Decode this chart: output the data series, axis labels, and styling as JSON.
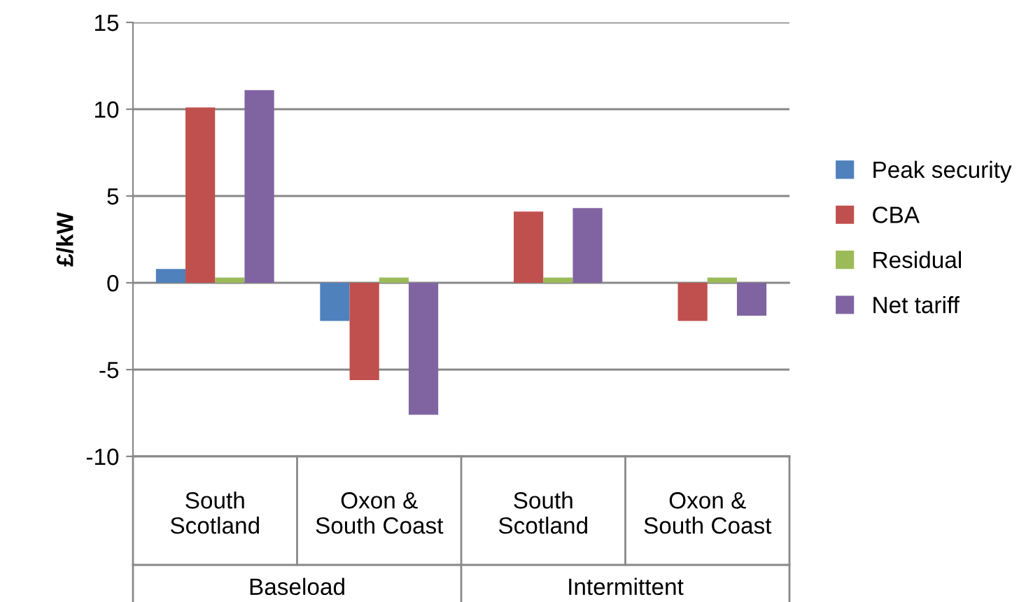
{
  "chart_data": {
    "type": "bar",
    "ylabel": "£/kW",
    "categories": [
      "South\nScotland",
      "Oxon &\nSouth Coast",
      "South\nScotland",
      "Oxon &\nSouth Coast"
    ],
    "series": [
      {
        "name": "Peak security",
        "color": "#4f81bd",
        "values": [
          0.8,
          -2.2,
          0,
          0
        ]
      },
      {
        "name": "CBA",
        "color": "#c0504d",
        "values": [
          10.1,
          -5.6,
          4.1,
          -2.2
        ]
      },
      {
        "name": "Residual",
        "color": "#9bbb59",
        "values": [
          0.3,
          0.3,
          0.3,
          0.3
        ]
      },
      {
        "name": "Net tariff",
        "color": "#8064a2",
        "values": [
          11.1,
          -7.6,
          4.3,
          -1.9
        ]
      }
    ],
    "annotations": [
      "Baseload",
      "Intermittent"
    ],
    "ylim": [
      -10,
      15
    ],
    "yticks": [
      -10,
      -5,
      0,
      5,
      10,
      15
    ],
    "grid": "y",
    "legend": "right"
  }
}
